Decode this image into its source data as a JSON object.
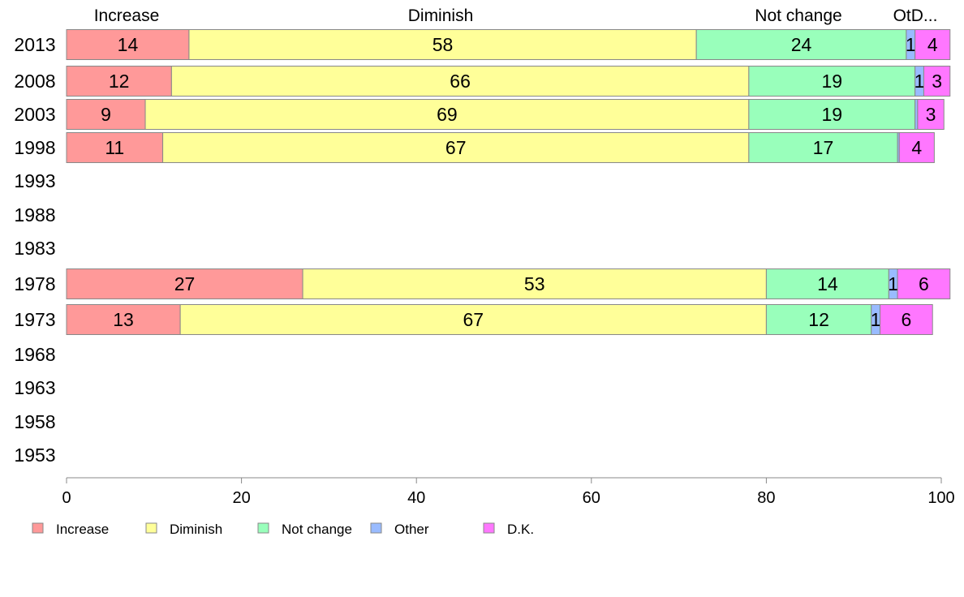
{
  "chart_data": {
    "type": "bar",
    "orientation": "horizontal",
    "stacked": true,
    "categories": [
      "2013",
      "2008",
      "2003",
      "1998",
      "1993",
      "1988",
      "1983",
      "1978",
      "1973",
      "1968",
      "1963",
      "1958",
      "1953"
    ],
    "series": [
      {
        "name": "Increase",
        "color": "#ff9999",
        "values": [
          14,
          12,
          9,
          11,
          null,
          null,
          null,
          27,
          13,
          null,
          null,
          null,
          null
        ]
      },
      {
        "name": "Diminish",
        "color": "#ffff99",
        "values": [
          58,
          66,
          69,
          67,
          null,
          null,
          null,
          53,
          67,
          null,
          null,
          null,
          null
        ]
      },
      {
        "name": "Not change",
        "color": "#99ffbb",
        "values": [
          24,
          19,
          19,
          17,
          null,
          null,
          null,
          14,
          12,
          null,
          null,
          null,
          null
        ]
      },
      {
        "name": "Other",
        "color": "#99bbff",
        "values": [
          1,
          1,
          0.3,
          0.2,
          null,
          null,
          null,
          1,
          1,
          null,
          null,
          null,
          null
        ]
      },
      {
        "name": "D.K.",
        "color": "#ff77ff",
        "values": [
          4,
          3,
          3,
          4,
          null,
          null,
          null,
          6,
          6,
          null,
          null,
          null,
          null
        ]
      }
    ],
    "data_labels": [
      [
        "14",
        "58",
        "24",
        "1",
        "4"
      ],
      [
        "12",
        "66",
        "19",
        "1",
        "3"
      ],
      [
        "9",
        "69",
        "19",
        "",
        "3"
      ],
      [
        "11",
        "67",
        "17",
        "",
        "4"
      ],
      null,
      null,
      null,
      [
        "27",
        "53",
        "14",
        "1",
        "6"
      ],
      [
        "13",
        "67",
        "12",
        "1",
        "6"
      ],
      null,
      null,
      null,
      null
    ],
    "top_labels": [
      "Increase",
      "Diminish",
      "Not change",
      "OtD..."
    ],
    "xlim": [
      0,
      100
    ],
    "xticks": [
      0,
      20,
      40,
      60,
      80,
      100
    ],
    "grid": false,
    "legend": {
      "position": "bottom-left",
      "items": [
        "Increase",
        "Diminish",
        "Not change",
        "Other",
        "D.K."
      ]
    }
  }
}
